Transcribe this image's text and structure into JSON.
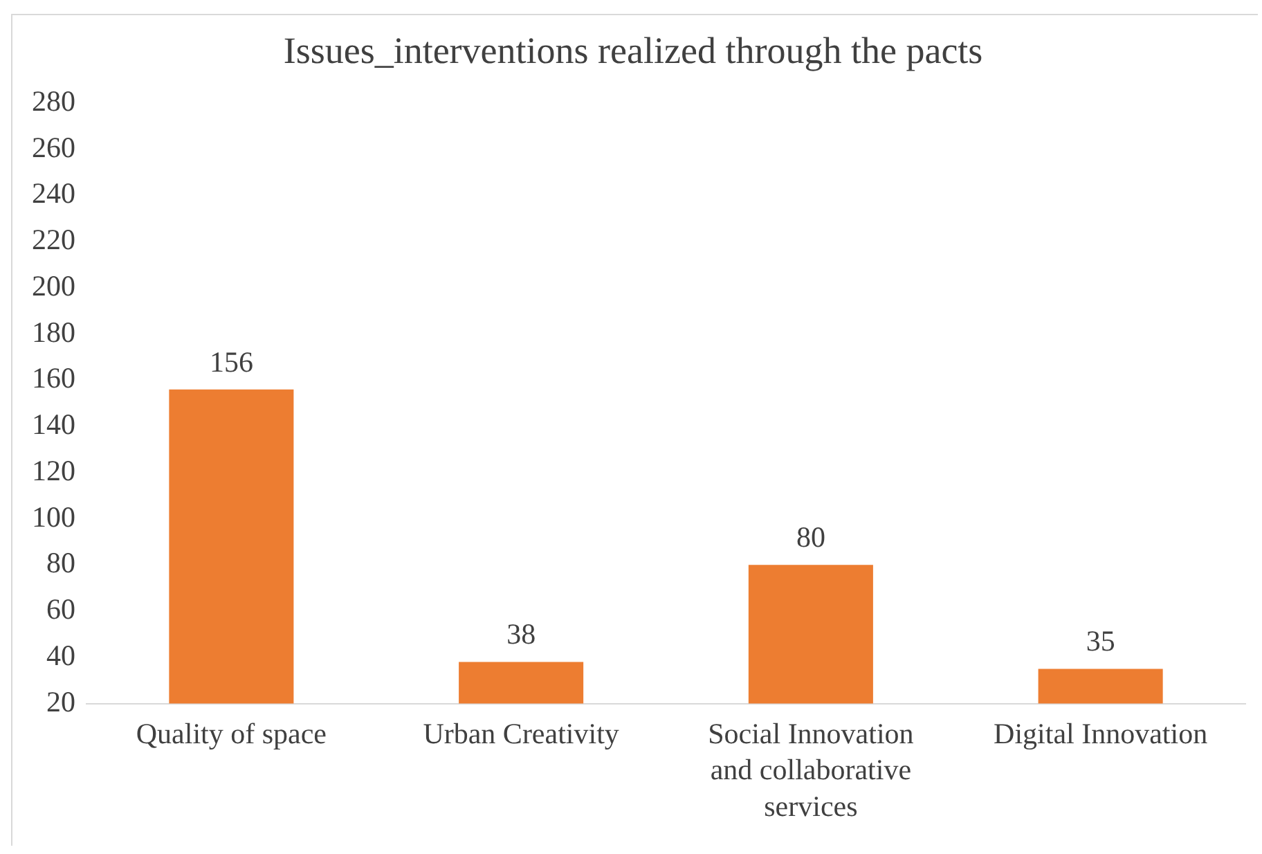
{
  "chart_data": {
    "type": "bar",
    "title": "Issues_interventions realized through the pacts",
    "categories": [
      "Quality of space",
      "Urban Creativity",
      "Social Innovation and collaborative services",
      "Digital Innovation"
    ],
    "values": [
      156,
      38,
      80,
      35
    ],
    "color": "#ed7d31",
    "ylim": [
      20,
      280
    ],
    "yticks": [
      20,
      40,
      60,
      80,
      100,
      120,
      140,
      160,
      180,
      200,
      220,
      240,
      260,
      280
    ],
    "grid": false,
    "legend": false,
    "data_labels": true
  }
}
